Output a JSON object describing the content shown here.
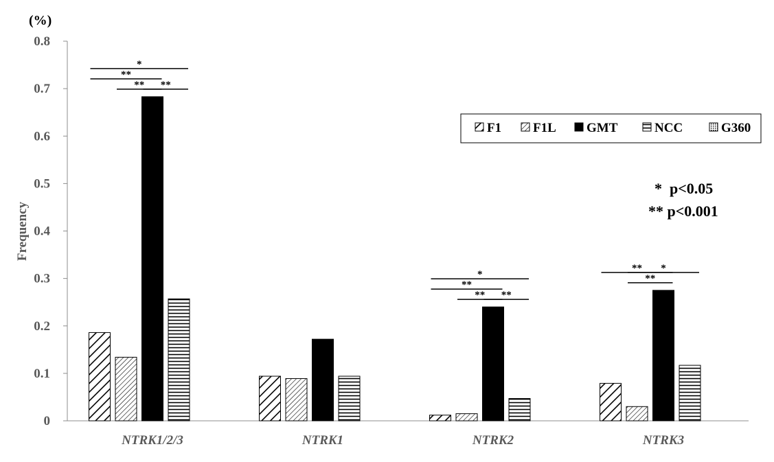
{
  "chart_data": {
    "type": "bar",
    "unit_label": "(%)",
    "ylabel": "Frequency",
    "xlabel": "",
    "ylim": [
      0,
      0.8
    ],
    "yticks": [
      "0",
      "0.1",
      "0.2",
      "0.3",
      "0.4",
      "0.5",
      "0.6",
      "0.7",
      "0.8"
    ],
    "categories": [
      "NTRK1/2/3",
      "NTRK1",
      "NTRK2",
      "NTRK3"
    ],
    "series": [
      {
        "name": "F1",
        "pattern": "diag-wide",
        "values": [
          0.186,
          0.094,
          0.012,
          0.079
        ]
      },
      {
        "name": "F1L",
        "pattern": "diag-narrow",
        "values": [
          0.134,
          0.089,
          0.015,
          0.03
        ]
      },
      {
        "name": "GMT",
        "pattern": "solid",
        "values": [
          0.683,
          0.172,
          0.24,
          0.275
        ]
      },
      {
        "name": "NCC",
        "pattern": "horizontal",
        "values": [
          0.257,
          0.094,
          0.047,
          0.117
        ]
      },
      {
        "name": "G360",
        "pattern": "dotted",
        "values": [
          null,
          null,
          null,
          null
        ]
      }
    ],
    "legend_position": "top-right",
    "significance": [
      {
        "category": 0,
        "from": 0,
        "to": 3,
        "label": "*"
      },
      {
        "category": 0,
        "from": 0,
        "to": 2,
        "label": "**"
      },
      {
        "category": 0,
        "from": 1,
        "to": 2,
        "label": "**"
      },
      {
        "category": 0,
        "from": 2,
        "to": 3,
        "label": "**"
      },
      {
        "category": 2,
        "from": 0,
        "to": 3,
        "label": "*"
      },
      {
        "category": 2,
        "from": 0,
        "to": 2,
        "label": "**"
      },
      {
        "category": 2,
        "from": 1,
        "to": 2,
        "label": "**"
      },
      {
        "category": 2,
        "from": 2,
        "to": 3,
        "label": "**"
      },
      {
        "category": 3,
        "from": 1,
        "to": 3,
        "label": "*"
      },
      {
        "category": 3,
        "from": 0,
        "to": 2,
        "label": "**"
      },
      {
        "category": 3,
        "from": 1,
        "to": 2,
        "label": "**"
      }
    ],
    "annotations": [
      "*  p<0.05",
      "** p<0.001"
    ]
  }
}
